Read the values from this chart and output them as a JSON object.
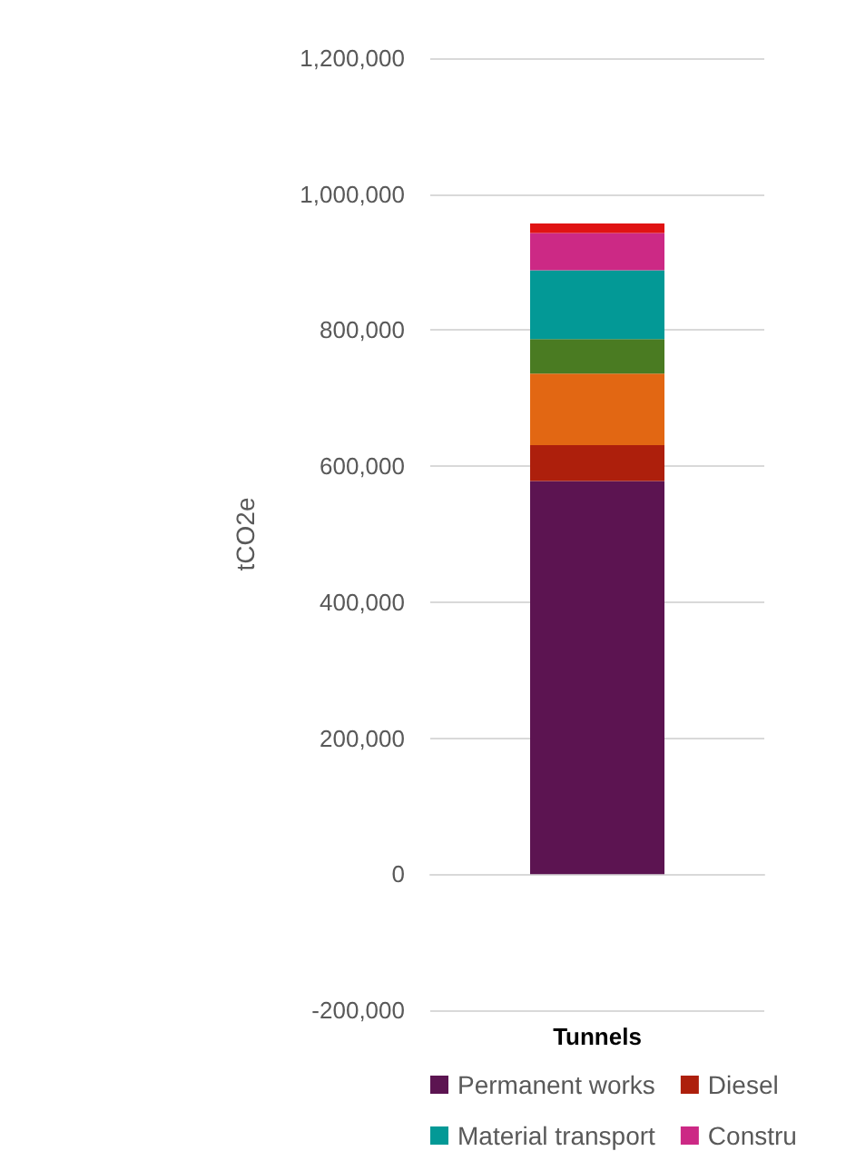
{
  "chart_data": {
    "type": "bar",
    "stacked": true,
    "categories": [
      "Tunnels"
    ],
    "ylabel": "tCO2e",
    "ylim": [
      -200000,
      1200000
    ],
    "yticks": [
      {
        "value": -200000,
        "label": "-200,000"
      },
      0,
      {
        "value": 200000,
        "label": "200,000"
      },
      {
        "value": 400000,
        "label": "400,000"
      },
      {
        "value": 600000,
        "label": "600,000"
      },
      {
        "value": 800000,
        "label": "800,000"
      },
      {
        "value": 1000000,
        "label": "1,000,000"
      },
      {
        "value": 1200000,
        "label": "1,200,000"
      }
    ],
    "grid": "y",
    "legend": "bottom",
    "series": [
      {
        "name": "Permanent works",
        "color": "#5c1451",
        "values": [
          578000
        ]
      },
      {
        "name": "Diesel",
        "color": "#ad1f0c",
        "values": [
          53000
        ]
      },
      {
        "color": "#e26713",
        "values": [
          105000
        ]
      },
      {
        "color": "#4a7b22",
        "values": [
          51000
        ]
      },
      {
        "name": "Material transport",
        "color": "#039996",
        "values": [
          101000
        ]
      },
      {
        "name": "Constru",
        "color": "#cc2985",
        "values": [
          55000
        ]
      },
      {
        "color": "#e01313",
        "values": [
          14000
        ]
      }
    ]
  }
}
